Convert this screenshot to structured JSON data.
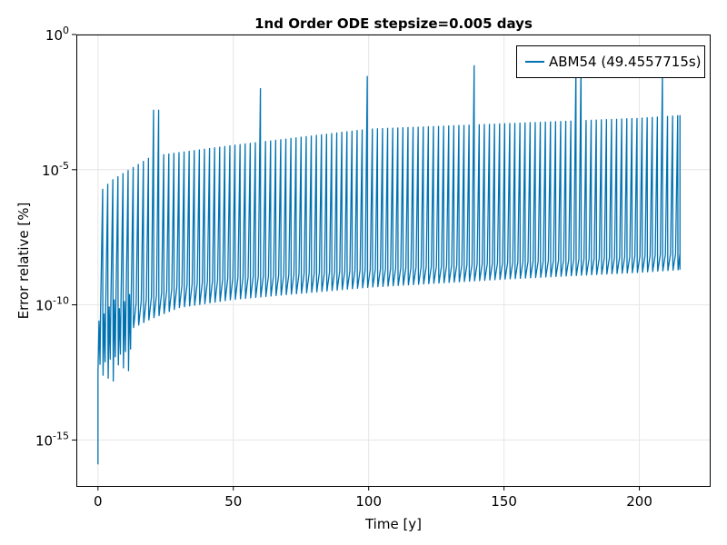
{
  "chart_data": {
    "type": "line",
    "title": "1nd Order ODE stepsize=0.005 days",
    "xlabel": "Time [y]",
    "ylabel": "Error relative [%]",
    "xlim": [
      -8,
      226
    ],
    "ylim": [
      -16.7,
      0
    ],
    "yscale": "log",
    "grid": true,
    "legend_position": "top-right",
    "x_ticks": [
      0,
      50,
      100,
      150,
      200
    ],
    "x_tick_labels": [
      "0",
      "50",
      "100",
      "150",
      "200"
    ],
    "y_ticks": [
      -15,
      -10,
      -5,
      0
    ],
    "y_tick_base": "10",
    "y_tick_exponents": [
      "-15",
      "-10",
      "-5",
      "0"
    ],
    "series": [
      {
        "name": "ABM54 (49.4557715s)",
        "color": "#0072b2",
        "x_range": [
          0,
          215
        ],
        "oscillation_period_years": 1.88,
        "baseline_log10": [
          [
            0,
            -11.5
          ],
          [
            10,
            -11.0
          ],
          [
            20,
            -10.5
          ],
          [
            30,
            -10.1
          ],
          [
            50,
            -9.8
          ],
          [
            100,
            -9.35
          ],
          [
            150,
            -9.05
          ],
          [
            200,
            -8.8
          ],
          [
            215,
            -8.7
          ]
        ],
        "upper_band_log10": [
          [
            0,
            -10.3
          ],
          [
            10,
            -10.1
          ],
          [
            20,
            -9.7
          ],
          [
            30,
            -9.3
          ],
          [
            50,
            -9.0
          ],
          [
            100,
            -8.7
          ],
          [
            150,
            -8.45
          ],
          [
            200,
            -8.2
          ],
          [
            215,
            -8.1
          ]
        ],
        "spike_peak_log10": [
          [
            0,
            -5.9
          ],
          [
            5,
            -5.4
          ],
          [
            10,
            -5.1
          ],
          [
            20,
            -4.5
          ],
          [
            50,
            -4.1
          ],
          [
            100,
            -3.5
          ],
          [
            150,
            -3.3
          ],
          [
            200,
            -3.1
          ],
          [
            215,
            -3.0
          ]
        ],
        "min_point": [
          0,
          -15.9
        ],
        "outlier_peaks": [
          [
            21.5,
            -2.8
          ],
          [
            60.5,
            -2.0
          ],
          [
            99.5,
            -1.55
          ],
          [
            138.5,
            -1.15
          ],
          [
            177.5,
            -1.2
          ],
          [
            208,
            -1.4
          ]
        ]
      }
    ]
  }
}
